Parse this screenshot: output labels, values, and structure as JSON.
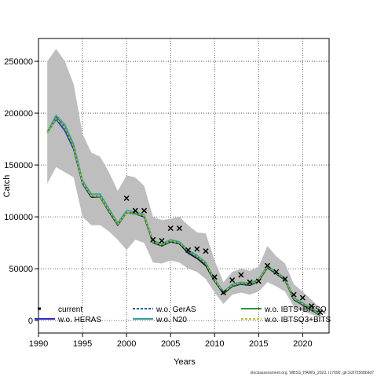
{
  "chart_data": {
    "type": "line",
    "title": "",
    "xlabel": "Years",
    "ylabel": "Catch",
    "xlim": [
      1990,
      2023
    ],
    "ylim": [
      -12000,
      272000
    ],
    "x_ticks": [
      1990,
      1995,
      2000,
      2005,
      2010,
      2015,
      2020
    ],
    "y_ticks": [
      0,
      50000,
      100000,
      150000,
      200000,
      250000
    ],
    "x_tick_labels": [
      "1990",
      "1995",
      "2000",
      "2005",
      "2010",
      "2015",
      "2020"
    ],
    "y_tick_labels": [
      "0",
      "50000",
      "100000",
      "150000",
      "200000",
      "250000"
    ],
    "grid": true,
    "legend_position": "bottom",
    "footer": "stockassessment.org, WBSS_HAWG_2023, r17090, git:3c872568b9d7",
    "x": [
      1991,
      1992,
      1993,
      1994,
      1995,
      1996,
      1997,
      1998,
      1999,
      2000,
      2001,
      2002,
      2003,
      2004,
      2005,
      2006,
      2007,
      2008,
      2009,
      2010,
      2011,
      2012,
      2013,
      2014,
      2015,
      2016,
      2017,
      2018,
      2019,
      2020,
      2021,
      2022
    ],
    "confidence_band": {
      "name": "current",
      "color": "#bebebe",
      "lower": [
        132000,
        148000,
        143000,
        138000,
        100000,
        92000,
        92000,
        86000,
        78000,
        68000,
        78000,
        75000,
        56000,
        55000,
        58000,
        56000,
        50000,
        47000,
        40000,
        27000,
        16000,
        25000,
        27000,
        25000,
        28000,
        37000,
        33000,
        28000,
        13000,
        9000,
        6000,
        3000
      ],
      "upper": [
        250000,
        262000,
        250000,
        228000,
        180000,
        162000,
        158000,
        143000,
        125000,
        140000,
        138000,
        130000,
        100000,
        97000,
        98000,
        100000,
        92000,
        85000,
        84000,
        58000,
        37000,
        47000,
        50000,
        48000,
        52000,
        72000,
        62000,
        55000,
        35000,
        28000,
        20000,
        12000
      ]
    },
    "observed_catch": {
      "marker": "x",
      "x": [
        2000,
        2001,
        2002,
        2003,
        2004,
        2005,
        2006,
        2007,
        2008,
        2009,
        2010,
        2011,
        2012,
        2013,
        2014,
        2015,
        2016,
        2017,
        2018,
        2019,
        2020,
        2021,
        2022
      ],
      "values": [
        118000,
        106000,
        106000,
        78000,
        77000,
        89000,
        89000,
        68000,
        69000,
        67000,
        42000,
        27000,
        39000,
        44000,
        37000,
        38000,
        53000,
        47000,
        40000,
        25000,
        22000,
        14000,
        8000
      ]
    },
    "series": [
      {
        "name": "current",
        "color": "#000000",
        "style": "solid",
        "values": [
          181000,
          196000,
          186000,
          167000,
          132000,
          119000,
          119000,
          105000,
          92000,
          104000,
          103000,
          100000,
          75000,
          72000,
          76000,
          74000,
          65000,
          60000,
          53000,
          38000,
          26000,
          33000,
          35000,
          34000,
          38000,
          51000,
          45000,
          39000,
          20000,
          15000,
          10000,
          5000
        ]
      },
      {
        "name": "w.o. HERAS",
        "color": "#2b2dbf",
        "style": "solid",
        "values": [
          181000,
          194000,
          183000,
          165000,
          132000,
          120000,
          120000,
          106000,
          93000,
          104000,
          104000,
          101000,
          76000,
          73000,
          77000,
          75000,
          66000,
          61000,
          54000,
          39000,
          27000,
          34000,
          36000,
          35000,
          39000,
          52000,
          46000,
          40000,
          21000,
          16000,
          11000,
          6000
        ]
      },
      {
        "name": "w.o. GerAS",
        "color": "#1e5a96",
        "style": "dashed",
        "values": [
          181000,
          196000,
          187000,
          168000,
          133000,
          120000,
          120000,
          106000,
          92000,
          104000,
          103000,
          100000,
          75000,
          72000,
          76000,
          74000,
          66000,
          61000,
          54000,
          38000,
          27000,
          33000,
          35000,
          34000,
          38000,
          51000,
          45000,
          39000,
          20000,
          15000,
          10000,
          5000
        ]
      },
      {
        "name": "w.o. N20",
        "color": "#3a9e9e",
        "style": "solid",
        "values": [
          182000,
          198000,
          189000,
          170000,
          135000,
          122000,
          122000,
          108000,
          94000,
          106000,
          105000,
          102000,
          77000,
          74000,
          78000,
          76000,
          68000,
          63000,
          56000,
          40000,
          28000,
          35000,
          37000,
          36000,
          40000,
          53000,
          47000,
          41000,
          22000,
          17000,
          12000,
          6000
        ]
      },
      {
        "name": "w.o. IBTS+BITSQ",
        "color": "#2f8f3f",
        "style": "solid",
        "values": [
          181000,
          195000,
          186000,
          167000,
          133000,
          120000,
          119000,
          106000,
          93000,
          104000,
          103000,
          101000,
          76000,
          73000,
          77000,
          75000,
          67000,
          62000,
          55000,
          39000,
          27000,
          34000,
          36000,
          35000,
          39000,
          52000,
          46000,
          40000,
          21000,
          16000,
          11000,
          5000
        ]
      },
      {
        "name": "w.o. IBTSQ3+BITS",
        "color": "#b5c233",
        "style": "dashed",
        "values": [
          181000,
          195000,
          186000,
          167000,
          133000,
          120000,
          120000,
          106000,
          93000,
          104000,
          104000,
          101000,
          76000,
          73000,
          77000,
          75000,
          67000,
          62000,
          55000,
          39000,
          27000,
          34000,
          36000,
          35000,
          39000,
          52000,
          46000,
          40000,
          21000,
          16000,
          11000,
          6000
        ]
      }
    ]
  }
}
